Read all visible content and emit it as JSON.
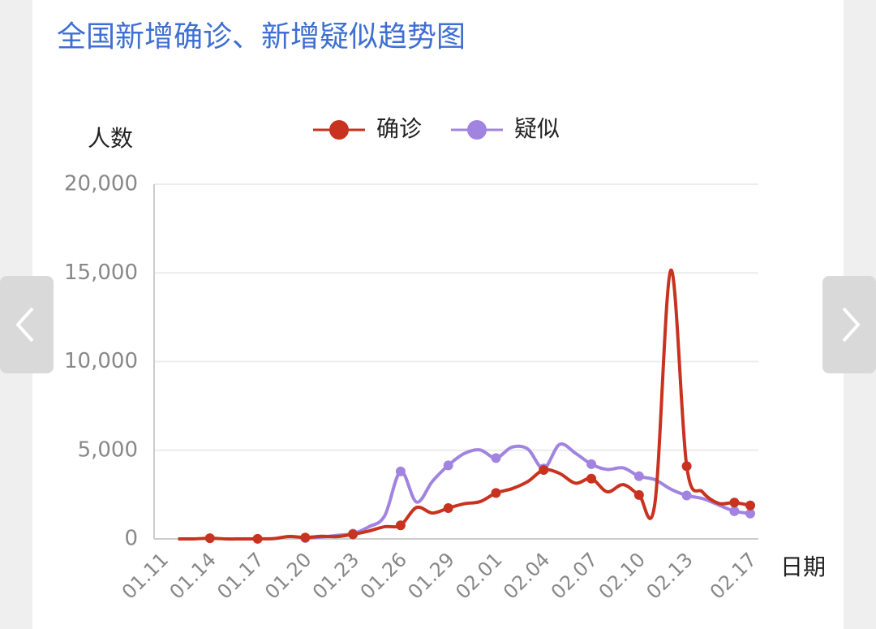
{
  "chart_data": {
    "type": "line",
    "title": "全国新增确诊、新增疑似趋势图",
    "ylabel": "人数",
    "xlabel": "日期",
    "categories": [
      "01.11",
      null,
      null,
      "01.14",
      null,
      null,
      "01.17",
      null,
      null,
      "01.20",
      null,
      null,
      "01.23",
      null,
      null,
      "01.26",
      null,
      null,
      "01.29",
      null,
      null,
      "02.01",
      null,
      null,
      "02.04",
      null,
      null,
      "02.07",
      null,
      null,
      "02.10",
      null,
      null,
      "02.13",
      null,
      null,
      null,
      "02.17"
    ],
    "series": [
      {
        "name": "确诊",
        "color": "#c8321e",
        "values": [
          null,
          0,
          0,
          41,
          0,
          0,
          4,
          17,
          136,
          77,
          149,
          131,
          259,
          444,
          688,
          769,
          1771,
          1459,
          1737,
          1982,
          2102,
          2590,
          2829,
          3235,
          3887,
          3694,
          3143,
          3399,
          2656,
          3062,
          2478,
          2015,
          15152,
          4100,
          2641,
          2009,
          2048,
          1886
        ]
      },
      {
        "name": "疑似",
        "color": "#a184e0",
        "values": [
          null,
          null,
          null,
          null,
          null,
          null,
          null,
          null,
          null,
          54,
          100,
          200,
          300,
          680,
          1309,
          3806,
          2077,
          3248,
          4148,
          4812,
          5019,
          4562,
          5173,
          5072,
          3971,
          5328,
          4833,
          4214,
          3916,
          4008,
          3536,
          3342,
          2807,
          2450,
          2277,
          1918,
          1563,
          1432
        ]
      }
    ],
    "ylim": [
      0,
      20000
    ],
    "yticks": [
      0,
      {
        "value": 5000,
        "label": "5,000"
      },
      {
        "value": 10000,
        "label": "10,000"
      },
      {
        "value": 15000,
        "label": "15,000"
      },
      {
        "value": 20000,
        "label": "20,000"
      }
    ],
    "grid": true,
    "legend": "top"
  }
}
